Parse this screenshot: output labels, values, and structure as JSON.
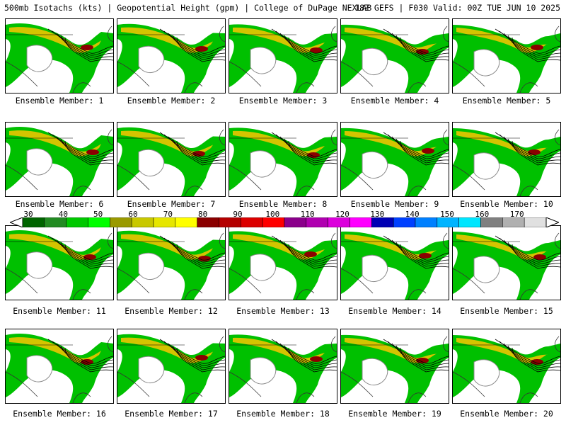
{
  "header": {
    "left": "500mb Isotachs (kts) | Geopotential Height (gpm) | College of DuPage NEXLAB",
    "right": "18Z GEFS | F030 Valid: 00Z TUE JUN 10 2025"
  },
  "members": [
    {
      "label": "Ensemble Member: 1"
    },
    {
      "label": "Ensemble Member: 2"
    },
    {
      "label": "Ensemble Member: 3"
    },
    {
      "label": "Ensemble Member: 4"
    },
    {
      "label": "Ensemble Member: 5"
    },
    {
      "label": "Ensemble Member: 6"
    },
    {
      "label": "Ensemble Member: 7"
    },
    {
      "label": "Ensemble Member: 8"
    },
    {
      "label": "Ensemble Member: 9"
    },
    {
      "label": "Ensemble Member: 10"
    },
    {
      "label": "Ensemble Member: 11"
    },
    {
      "label": "Ensemble Member: 12"
    },
    {
      "label": "Ensemble Member: 13"
    },
    {
      "label": "Ensemble Member: 14"
    },
    {
      "label": "Ensemble Member: 15"
    },
    {
      "label": "Ensemble Member: 16"
    },
    {
      "label": "Ensemble Member: 17"
    },
    {
      "label": "Ensemble Member: 18"
    },
    {
      "label": "Ensemble Member: 19"
    },
    {
      "label": "Ensemble Member: 20"
    }
  ],
  "colorbar": {
    "ticks": [
      "30",
      "40",
      "50",
      "60",
      "70",
      "80",
      "90",
      "100",
      "110",
      "120",
      "130",
      "140",
      "150",
      "160",
      "170"
    ],
    "colors": [
      "#006400",
      "#228B22",
      "#00C800",
      "#00FF00",
      "#9A9A00",
      "#C8C800",
      "#E6E600",
      "#FFFF00",
      "#8B0000",
      "#B40000",
      "#DC0000",
      "#FF0000",
      "#8B008B",
      "#B000B0",
      "#DC00DC",
      "#FF00FF",
      "#0000B4",
      "#0040FF",
      "#0080FF",
      "#00B4FF",
      "#00E6FF",
      "#808080",
      "#B0B0B0",
      "#E0E0E0"
    ]
  }
}
